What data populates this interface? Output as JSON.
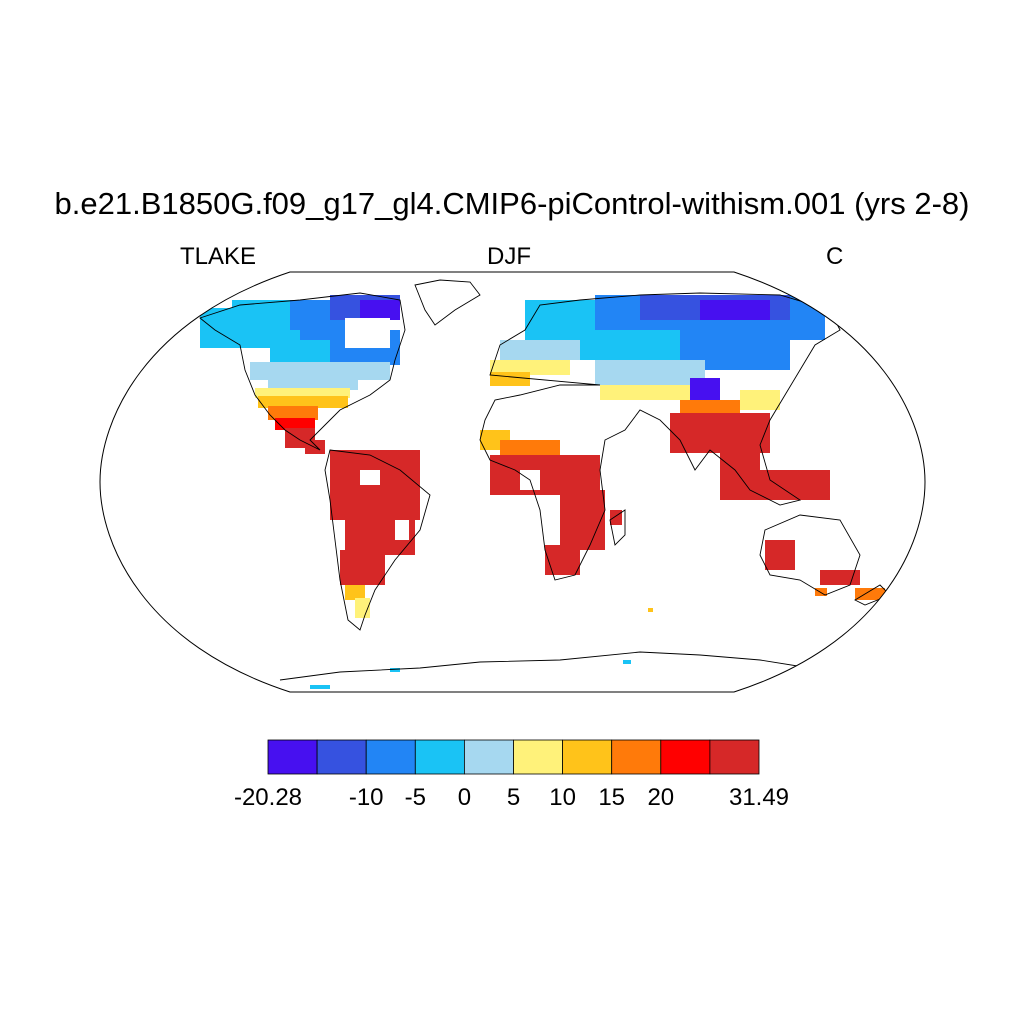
{
  "header": {
    "title": "b.e21.B1850G.f09_g17_gl4.CMIP6-piControl-withism.001 (yrs 2-8)",
    "variable": "TLAKE",
    "season": "DJF",
    "units": "C"
  },
  "map": {
    "projection": "Robinson",
    "coastline_color": "#000000",
    "field_description": "Lake temperature gridded over land lake cells"
  },
  "colorbar": {
    "colors": [
      "#4710f0",
      "#3652e0",
      "#2285f5",
      "#1ac3f5",
      "#a6d8f0",
      "#fff27a",
      "#ffc31a",
      "#ff7a0a",
      "#ff0000",
      "#d62828"
    ],
    "labels": [
      "-20.28",
      "-10",
      "-5",
      "0",
      "5",
      "10",
      "15",
      "20",
      "31.49"
    ]
  }
}
